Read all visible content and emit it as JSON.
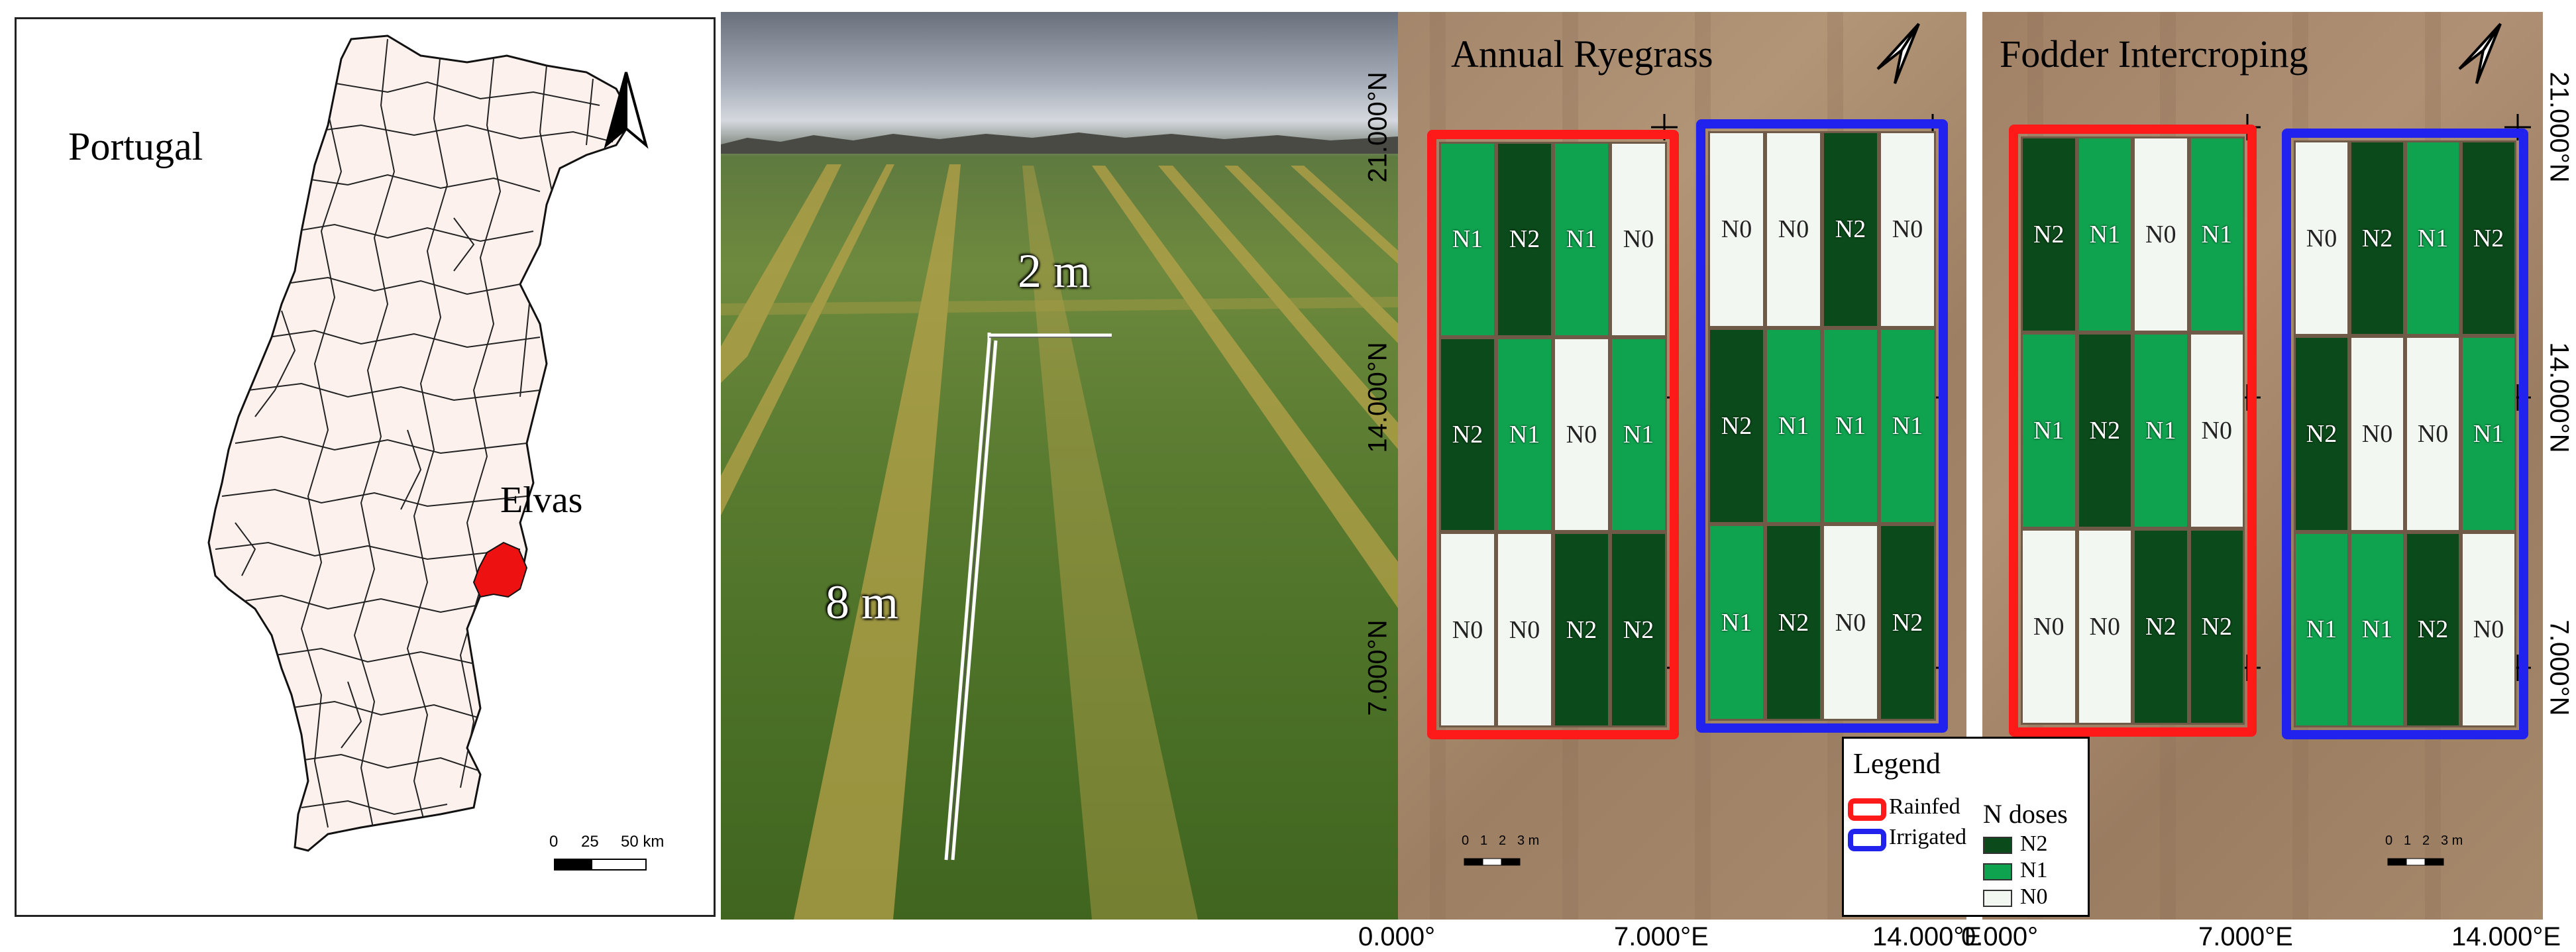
{
  "colors": {
    "rainfed": "#ff1a1a",
    "irrigated": "#2222ee",
    "N2": "#0b4a1a",
    "N1": "#0fa34f",
    "N0": "#f3f7f1",
    "elvas": "#ee1111"
  },
  "portugal_map": {
    "country_label": "Portugal",
    "region_label": "Elvas",
    "north_arrow": "north-arrow-icon",
    "scale": {
      "ticks": [
        "0",
        "25",
        "50 km"
      ]
    }
  },
  "photo": {
    "width_label": "2 m",
    "length_label": "8 m"
  },
  "fields": [
    {
      "title": "Annual Ryegrass",
      "north_arrow": "north-arrow-icon",
      "scale": {
        "ticks": [
          "0",
          "1",
          "2",
          "3 m"
        ]
      },
      "x_ticks": [
        "0.000°",
        "7.000°E",
        "14.000°E"
      ],
      "y_ticks": [
        "21.000°N",
        "14.000°N",
        "7.000°N"
      ],
      "blocks": [
        {
          "treatment": "Rainfed",
          "rows": [
            [
              "N1",
              "N2",
              "N1",
              "N0"
            ],
            [
              "N2",
              "N1",
              "N0",
              "N1"
            ],
            [
              "N0",
              "N0",
              "N2",
              "N2"
            ]
          ]
        },
        {
          "treatment": "Irrigated",
          "rows": [
            [
              "N0",
              "N0",
              "N2",
              "N0"
            ],
            [
              "N2",
              "N1",
              "N1",
              "N1"
            ],
            [
              "N1",
              "N2",
              "N0",
              "N2"
            ]
          ]
        }
      ]
    },
    {
      "title": "Fodder Intercroping",
      "north_arrow": "north-arrow-icon",
      "scale": {
        "ticks": [
          "0",
          "1",
          "2",
          "3 m"
        ]
      },
      "x_ticks": [
        "0.000°",
        "7.000°E",
        "14.000°E"
      ],
      "y_ticks": [
        "21.000°N",
        "14.000°N",
        "7.000°N"
      ],
      "blocks": [
        {
          "treatment": "Rainfed",
          "rows": [
            [
              "N2",
              "N1",
              "N0",
              "N1"
            ],
            [
              "N1",
              "N2",
              "N1",
              "N0"
            ],
            [
              "N0",
              "N0",
              "N2",
              "N2"
            ]
          ]
        },
        {
          "treatment": "Irrigated",
          "rows": [
            [
              "N0",
              "N2",
              "N1",
              "N2"
            ],
            [
              "N2",
              "N0",
              "N0",
              "N1"
            ],
            [
              "N1",
              "N1",
              "N2",
              "N0"
            ]
          ]
        }
      ]
    }
  ],
  "legend": {
    "title": "Legend",
    "rainfed": "Rainfed",
    "irrigated": "Irrigated",
    "ndoses_title": "N doses",
    "n2": "N2",
    "n1": "N1",
    "n0": "N0"
  }
}
